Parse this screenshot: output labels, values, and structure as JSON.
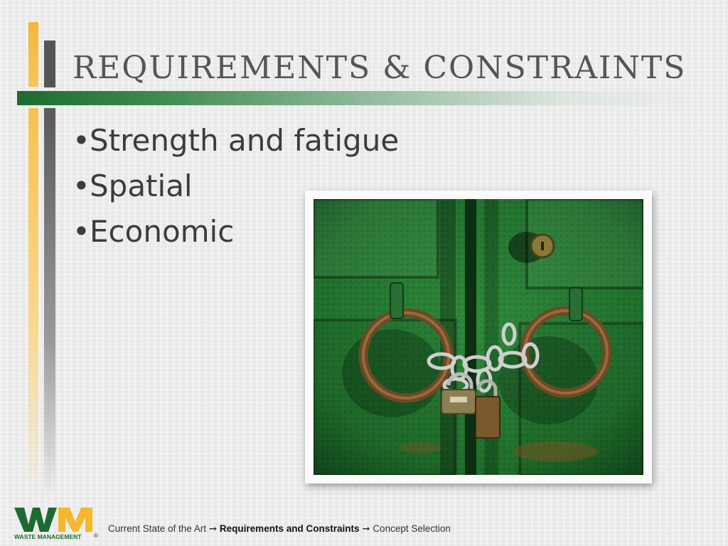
{
  "slide": {
    "title": "REQUIREMENTS & CONSTRAINTS",
    "bullets": [
      "Strength and fatigue",
      "Spatial",
      "Economic"
    ],
    "bullet_glyph": "•"
  },
  "logo": {
    "mark": "WM",
    "name": "WASTE MANAGEMENT",
    "registered": "®",
    "colors": {
      "green": "#1c6b30",
      "yellow": "#f4b82e"
    }
  },
  "footer": {
    "crumb_1": "Current State of the Art",
    "arrow": "➞",
    "crumb_2": "Requirements and Constraints",
    "crumb_3": "Concept Selection"
  },
  "photo": {
    "icon": "locked-green-door-icon"
  },
  "colors": {
    "accent_green": "#1c6b30",
    "accent_yellow": "#f4b838",
    "text": "#3c3c3c"
  }
}
